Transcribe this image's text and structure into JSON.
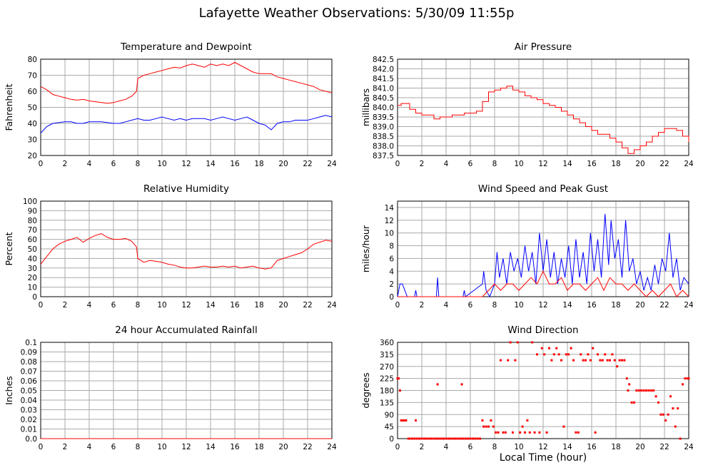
{
  "page": {
    "title": "Lafayette Weather Observations: 5/30/09 11:55p",
    "xaxis_label": "Local Time (hour)"
  },
  "chart_data": [
    {
      "id": "temp",
      "type": "line",
      "title": "Temperature and Dewpoint",
      "ylabel": "Fahrenheit",
      "xlim": [
        0,
        24
      ],
      "ylim": [
        20,
        80
      ],
      "xticks": [
        "0",
        "2",
        "4",
        "6",
        "8",
        "10",
        "12",
        "14",
        "16",
        "18",
        "20",
        "22",
        "24"
      ],
      "yticks": [
        "20",
        "30",
        "40",
        "50",
        "60",
        "70",
        "80"
      ],
      "grid": true,
      "series": [
        {
          "color": "#ff0000",
          "x": [
            0,
            0.5,
            1,
            1.5,
            2,
            2.5,
            3,
            3.5,
            4,
            4.5,
            5,
            5.5,
            6,
            6.5,
            7,
            7.5,
            7.9,
            8,
            8.5,
            9,
            9.5,
            10,
            10.5,
            11,
            11.5,
            12,
            12.5,
            13,
            13.5,
            14,
            14.5,
            15,
            15.5,
            16,
            16.5,
            17,
            17.5,
            18,
            18.5,
            19,
            19.5,
            20,
            20.5,
            21,
            21.5,
            22,
            22.5,
            23,
            23.5,
            24
          ],
          "y": [
            63,
            61,
            58,
            57,
            56,
            55,
            54.5,
            55,
            54,
            53.5,
            53,
            52.5,
            53,
            54,
            55,
            57,
            60,
            68,
            70,
            71,
            72,
            73,
            74,
            75,
            74.5,
            76,
            77,
            76,
            75,
            77,
            76,
            77,
            76,
            78,
            76,
            74,
            72,
            71,
            71,
            71,
            69,
            68,
            67,
            66,
            65,
            64,
            63,
            61,
            60,
            59
          ]
        },
        {
          "color": "#0000ff",
          "x": [
            0,
            0.5,
            1,
            1.5,
            2,
            2.5,
            3,
            3.5,
            4,
            4.5,
            5,
            5.5,
            6,
            6.5,
            7,
            7.5,
            8,
            8.5,
            9,
            9.5,
            10,
            10.5,
            11,
            11.5,
            12,
            12.5,
            13,
            13.5,
            14,
            14.5,
            15,
            15.5,
            16,
            16.5,
            17,
            17.5,
            18,
            18.5,
            19,
            19.5,
            20,
            20.5,
            21,
            21.5,
            22,
            22.5,
            23,
            23.5,
            24
          ],
          "y": [
            34,
            38,
            40,
            40.5,
            41,
            41,
            40,
            40,
            41,
            41,
            41,
            40.5,
            40,
            40,
            41,
            42,
            43,
            42,
            42,
            43,
            44,
            43,
            42,
            43,
            42,
            43,
            43,
            43,
            42,
            43,
            44,
            43,
            42,
            43,
            44,
            42,
            40,
            39,
            36,
            40,
            41,
            41,
            42,
            42,
            42,
            43,
            44,
            45,
            44
          ]
        }
      ]
    },
    {
      "id": "pressure",
      "type": "line",
      "title": "Air Pressure",
      "ylabel": "millibars",
      "xlim": [
        0,
        24
      ],
      "ylim": [
        837.5,
        842.5
      ],
      "xticks": [
        "0",
        "2",
        "4",
        "6",
        "8",
        "10",
        "12",
        "14",
        "16",
        "18",
        "20",
        "22",
        "24"
      ],
      "yticks": [
        "837.5",
        "838.0",
        "838.5",
        "839.0",
        "839.5",
        "840.0",
        "840.5",
        "841.0",
        "841.5",
        "842.0",
        "842.5"
      ],
      "grid": true,
      "series": [
        {
          "color": "#ff0000",
          "step": true,
          "x": [
            0,
            0.3,
            1,
            1.5,
            2,
            2.5,
            3,
            3.5,
            4,
            4.5,
            5,
            5.5,
            6,
            6.5,
            7,
            7.5,
            8,
            8.5,
            9,
            9.5,
            10,
            10.5,
            11,
            11.5,
            12,
            12.5,
            13,
            13.5,
            14,
            14.5,
            15,
            15.5,
            16,
            16.5,
            17,
            17.5,
            18,
            18.5,
            19,
            19.5,
            20,
            20.5,
            21,
            21.5,
            22,
            22.5,
            23,
            23.5,
            24
          ],
          "y": [
            840.1,
            840.2,
            839.9,
            839.7,
            839.6,
            839.6,
            839.4,
            839.5,
            839.5,
            839.6,
            839.6,
            839.7,
            839.7,
            839.8,
            840.3,
            840.8,
            840.9,
            841.0,
            841.1,
            840.9,
            840.8,
            840.6,
            840.5,
            840.4,
            840.2,
            840.1,
            840.0,
            839.8,
            839.6,
            839.4,
            839.2,
            839.0,
            838.8,
            838.6,
            838.6,
            838.4,
            838.2,
            837.9,
            837.6,
            837.8,
            838.0,
            838.2,
            838.5,
            838.7,
            838.9,
            838.9,
            838.8,
            838.5,
            838.2
          ]
        }
      ]
    },
    {
      "id": "humidity",
      "type": "line",
      "title": "Relative Humidity",
      "ylabel": "Percent",
      "xlim": [
        0,
        24
      ],
      "ylim": [
        0,
        100
      ],
      "xticks": [
        "0",
        "2",
        "4",
        "6",
        "8",
        "10",
        "12",
        "14",
        "16",
        "18",
        "20",
        "22",
        "24"
      ],
      "yticks": [
        "0",
        "10",
        "20",
        "30",
        "40",
        "50",
        "60",
        "70",
        "80",
        "90",
        "100"
      ],
      "grid": true,
      "series": [
        {
          "color": "#ff0000",
          "x": [
            0,
            0.5,
            1,
            1.5,
            2,
            2.5,
            3,
            3.5,
            4,
            4.5,
            5,
            5.5,
            6,
            6.5,
            7,
            7.5,
            7.9,
            8,
            8.5,
            9,
            9.5,
            10,
            10.5,
            11,
            11.5,
            12,
            12.5,
            13,
            13.5,
            14,
            14.5,
            15,
            15.5,
            16,
            16.5,
            17,
            17.5,
            18,
            18.5,
            19,
            19.5,
            20,
            20.5,
            21,
            21.5,
            22,
            22.5,
            23,
            23.5,
            24
          ],
          "y": [
            34,
            42,
            50,
            55,
            58,
            60,
            62,
            57,
            61,
            64,
            66,
            62,
            60,
            60,
            61,
            58,
            52,
            40,
            36,
            38,
            37,
            36,
            34,
            33,
            31,
            30,
            30,
            31,
            32,
            31,
            31,
            32,
            31,
            32,
            30,
            31,
            32,
            30,
            29,
            30,
            38,
            40,
            42,
            44,
            46,
            50,
            55,
            57,
            59,
            58
          ]
        }
      ]
    },
    {
      "id": "wind",
      "type": "line",
      "title": "Wind Speed and Peak Gust",
      "ylabel": "miles/hour",
      "xlim": [
        0,
        24
      ],
      "ylim": [
        0,
        15
      ],
      "xticks": [
        "0",
        "2",
        "4",
        "6",
        "8",
        "10",
        "12",
        "14",
        "16",
        "18",
        "20",
        "22",
        "24"
      ],
      "yticks": [
        "0",
        "2",
        "4",
        "6",
        "8",
        "10",
        "12",
        "14"
      ],
      "grid": true,
      "series": [
        {
          "color": "#0000ff",
          "x": [
            0,
            0.2,
            0.4,
            0.6,
            0.8,
            1,
            1.4,
            1.5,
            1.6,
            2,
            3.2,
            3.3,
            3.4,
            4,
            5.4,
            5.5,
            5.6,
            7,
            7.1,
            7.3,
            7.6,
            8,
            8.2,
            8.4,
            8.7,
            9,
            9.3,
            9.6,
            9.9,
            10.2,
            10.5,
            10.8,
            11.1,
            11.4,
            11.7,
            12,
            12.3,
            12.6,
            12.9,
            13.2,
            13.5,
            13.8,
            14.1,
            14.4,
            14.7,
            15,
            15.3,
            15.6,
            15.9,
            16.2,
            16.5,
            16.8,
            17.1,
            17.4,
            17.6,
            17.9,
            18.2,
            18.5,
            18.8,
            19.1,
            19.4,
            19.7,
            20,
            20.3,
            20.6,
            20.9,
            21.2,
            21.5,
            21.8,
            22.1,
            22.4,
            22.7,
            23,
            23.3,
            23.6,
            24
          ],
          "y": [
            0,
            2,
            2,
            1,
            0,
            0,
            0,
            1,
            0,
            0,
            0,
            3,
            0,
            0,
            0,
            1,
            0,
            2,
            4,
            1,
            0,
            2,
            7,
            3,
            6,
            2,
            7,
            4,
            6,
            3,
            8,
            4,
            7,
            2,
            10,
            4,
            9,
            3,
            7,
            2,
            6,
            3,
            8,
            2,
            9,
            3,
            7,
            2,
            10,
            4,
            9,
            3,
            13,
            5,
            12,
            6,
            9,
            3,
            12,
            4,
            6,
            2,
            4,
            1,
            3,
            1,
            5,
            2,
            6,
            4,
            10,
            3,
            6,
            1,
            3,
            2
          ]
        },
        {
          "color": "#ff0000",
          "x": [
            0,
            7,
            7.5,
            8,
            8.5,
            9,
            9.5,
            10,
            10.5,
            11,
            11.5,
            12,
            12.5,
            13,
            13.5,
            14,
            14.5,
            15,
            15.5,
            16,
            16.5,
            17,
            17.5,
            18,
            18.5,
            19,
            19.5,
            20,
            20.5,
            21,
            21.5,
            22,
            22.5,
            23,
            23.5,
            24
          ],
          "y": [
            0,
            0,
            1,
            2,
            1,
            2,
            2,
            1,
            2,
            3,
            2,
            4,
            2,
            2,
            3,
            1,
            2,
            2,
            1,
            2,
            3,
            1,
            3,
            2,
            2,
            1,
            2,
            1,
            0,
            1,
            0,
            1,
            2,
            0,
            1,
            0
          ]
        }
      ]
    },
    {
      "id": "rain",
      "type": "line",
      "title": "24 hour Accumulated Rainfall",
      "ylabel": "Inches",
      "xlim": [
        0,
        24
      ],
      "ylim": [
        0,
        0.1
      ],
      "xticks": [
        "0",
        "2",
        "4",
        "6",
        "8",
        "10",
        "12",
        "14",
        "16",
        "18",
        "20",
        "22",
        "24"
      ],
      "yticks": [
        "0.0",
        "0.01",
        "0.02",
        "0.03",
        "0.04",
        "0.05",
        "0.06",
        "0.07",
        "0.08",
        "0.09",
        "0.1"
      ],
      "grid": true,
      "series": [
        {
          "color": "#ff0000",
          "x": [
            0,
            24
          ],
          "y": [
            0,
            0
          ]
        }
      ]
    },
    {
      "id": "direction",
      "type": "scatter",
      "title": "Wind Direction",
      "ylabel": "degrees",
      "xlim": [
        0,
        24
      ],
      "ylim": [
        0,
        360
      ],
      "xticks": [
        "0",
        "2",
        "4",
        "6",
        "8",
        "10",
        "12",
        "14",
        "16",
        "18",
        "20",
        "22",
        "24"
      ],
      "yticks": [
        "0",
        "45",
        "90",
        "135",
        "180",
        "225",
        "270",
        "315",
        "360"
      ],
      "grid": true,
      "series": [
        {
          "color": "#ff0000",
          "x": [
            0,
            0.1,
            0.2,
            0.3,
            0.4,
            0.5,
            0.6,
            0.7,
            0.9,
            1.5,
            1.0,
            1.2,
            1.4,
            1.6,
            1.8,
            2.0,
            2.2,
            2.4,
            2.6,
            2.8,
            3.0,
            3.2,
            3.3,
            3.4,
            3.6,
            3.8,
            4.0,
            4.2,
            4.4,
            4.6,
            4.8,
            5.0,
            5.2,
            5.3,
            5.4,
            5.6,
            5.8,
            6.0,
            6.2,
            6.4,
            6.6,
            6.8,
            7.0,
            7.1,
            7.3,
            7.5,
            7.7,
            7.9,
            8.1,
            8.3,
            8.5,
            8.7,
            8.9,
            9.1,
            9.3,
            9.5,
            9.7,
            9.9,
            10.1,
            10.3,
            10.5,
            10.7,
            10.9,
            11.1,
            11.3,
            11.5,
            11.7,
            11.9,
            12.1,
            12.3,
            12.5,
            12.7,
            12.9,
            13.1,
            13.3,
            13.5,
            13.7,
            13.9,
            14.1,
            14.3,
            14.5,
            14.7,
            14.9,
            15.1,
            15.3,
            15.5,
            15.7,
            15.9,
            16.1,
            16.3,
            16.5,
            16.7,
            16.9,
            17.1,
            17.3,
            17.5,
            17.7,
            17.9,
            18.1,
            18.3,
            18.5,
            18.7,
            18.9,
            19.0,
            19.1,
            19.3,
            19.5,
            19.7,
            19.9,
            20.1,
            20.3,
            20.5,
            20.7,
            20.9,
            21.1,
            21.3,
            21.5,
            21.7,
            21.9,
            22.1,
            22.3,
            22.5,
            22.7,
            22.9,
            23.1,
            23.3,
            23.5,
            23.7,
            23.9,
            24
          ],
          "y": [
            225,
            225,
            180,
            68,
            68,
            68,
            68,
            68,
            0,
            68,
            0,
            0,
            0,
            0,
            0,
            0,
            0,
            0,
            0,
            0,
            0,
            0,
            203,
            0,
            0,
            0,
            0,
            0,
            0,
            0,
            0,
            0,
            0,
            203,
            0,
            0,
            0,
            0,
            0,
            0,
            0,
            0,
            68,
            45,
            45,
            45,
            68,
            45,
            23,
            23,
            293,
            23,
            23,
            293,
            360,
            23,
            293,
            360,
            23,
            45,
            23,
            68,
            23,
            360,
            23,
            315,
            23,
            338,
            315,
            23,
            338,
            293,
            315,
            338,
            315,
            293,
            45,
            315,
            315,
            338,
            293,
            23,
            23,
            315,
            293,
            293,
            315,
            293,
            338,
            23,
            315,
            293,
            293,
            315,
            293,
            293,
            315,
            293,
            270,
            293,
            293,
            293,
            225,
            180,
            203,
            135,
            135,
            180,
            180,
            180,
            180,
            180,
            180,
            180,
            180,
            158,
            135,
            90,
            90,
            68,
            90,
            158,
            113,
            45,
            113,
            0,
            203,
            225,
            225,
            225
          ]
        }
      ]
    }
  ]
}
